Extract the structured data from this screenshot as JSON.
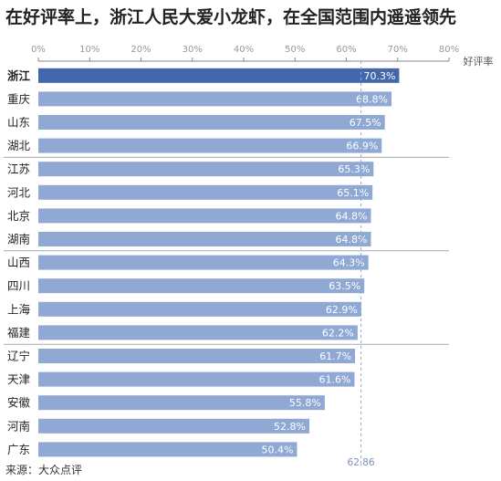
{
  "title": "在好评率上，浙江人民大爱小龙虾，在全国范围内遥遥领先",
  "source": "来源：大众点评",
  "colors": {
    "bar": "#8fa8d4",
    "highlight": "#4466aa",
    "axis": "#888888",
    "tick_label": "#999999",
    "divider": "#aaaaaa",
    "average_line": "#8fa8d4",
    "average_label": "#7a90b8"
  },
  "chart_data": {
    "type": "bar",
    "orientation": "horizontal",
    "axis_position": "top",
    "xlabel": "好评率",
    "xlim": [
      0,
      80
    ],
    "x_ticks": [
      "0%",
      "10%",
      "20%",
      "30%",
      "40%",
      "50%",
      "60%",
      "70%",
      "80%"
    ],
    "x_tick_values": [
      0,
      10,
      20,
      30,
      40,
      50,
      60,
      70,
      80
    ],
    "categories": [
      "浙江",
      "重庆",
      "山东",
      "湖北",
      "江苏",
      "河北",
      "北京",
      "湖南",
      "山西",
      "四川",
      "上海",
      "福建",
      "辽宁",
      "天津",
      "安徽",
      "河南",
      "广东"
    ],
    "values": [
      70.3,
      68.8,
      67.5,
      66.9,
      65.3,
      65.1,
      64.8,
      64.8,
      64.3,
      63.5,
      62.9,
      62.2,
      61.7,
      61.6,
      55.8,
      52.8,
      50.4
    ],
    "value_labels": [
      "70.3%",
      "68.8%",
      "67.5%",
      "66.9%",
      "65.3%",
      "65.1%",
      "64.8%",
      "64.8%",
      "64.3%",
      "63.5%",
      "62.9%",
      "62.2%",
      "61.7%",
      "61.6%",
      "55.8%",
      "52.8%",
      "50.4%"
    ],
    "highlight_category": "浙江",
    "group_dividers_after": [
      "湖北",
      "湖南",
      "福建"
    ],
    "reference_line": {
      "value": 62.86,
      "label": "62.86",
      "style": "dashed"
    },
    "grid": false,
    "legend": "none"
  }
}
